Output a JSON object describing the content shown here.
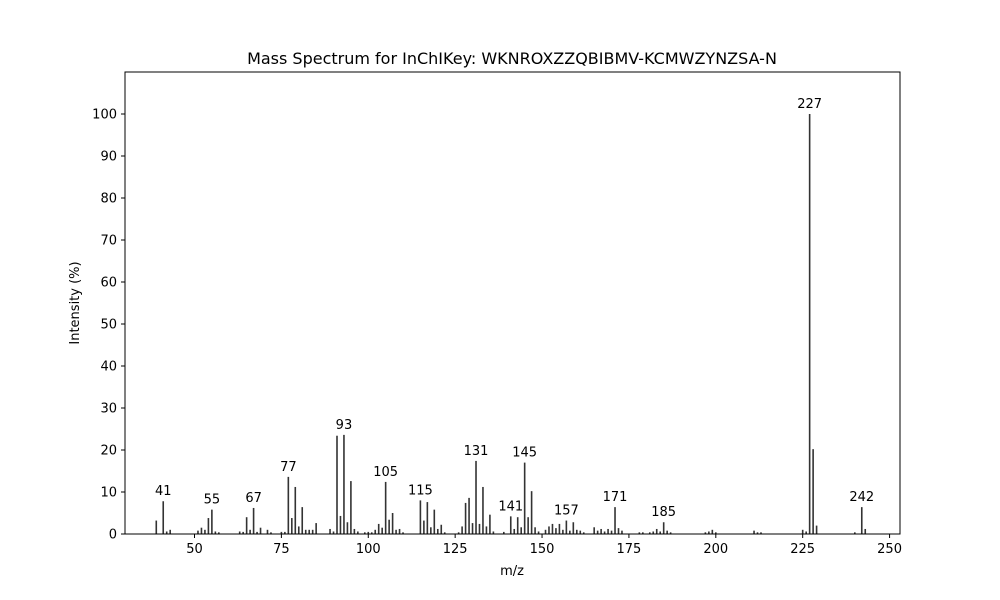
{
  "chart_data": {
    "type": "bar",
    "title": "Mass Spectrum for InChIKey: WKNROXZZQBIBMV-KCMWZYNZSA-N",
    "xlabel": "m/z",
    "ylabel": "Intensity (%)",
    "xlim": [
      30,
      253
    ],
    "ylim": [
      0,
      110
    ],
    "xticks": [
      50,
      75,
      100,
      125,
      150,
      175,
      200,
      225,
      250
    ],
    "yticks": [
      0,
      10,
      20,
      30,
      40,
      50,
      60,
      70,
      80,
      90,
      100
    ],
    "grid": false,
    "bar_color": "#333333",
    "peaks": [
      {
        "mz": 39,
        "intensity": 3.2
      },
      {
        "mz": 41,
        "intensity": 7.8,
        "label": "41"
      },
      {
        "mz": 42,
        "intensity": 0.6
      },
      {
        "mz": 43,
        "intensity": 1.0
      },
      {
        "mz": 51,
        "intensity": 0.8
      },
      {
        "mz": 52,
        "intensity": 1.5
      },
      {
        "mz": 53,
        "intensity": 1.0
      },
      {
        "mz": 54,
        "intensity": 3.8
      },
      {
        "mz": 55,
        "intensity": 5.8,
        "label": "55"
      },
      {
        "mz": 56,
        "intensity": 0.6
      },
      {
        "mz": 57,
        "intensity": 0.4
      },
      {
        "mz": 63,
        "intensity": 0.6
      },
      {
        "mz": 64,
        "intensity": 0.5
      },
      {
        "mz": 65,
        "intensity": 4.0
      },
      {
        "mz": 66,
        "intensity": 1.0
      },
      {
        "mz": 67,
        "intensity": 6.2,
        "label": "67"
      },
      {
        "mz": 68,
        "intensity": 0.5
      },
      {
        "mz": 69,
        "intensity": 1.5
      },
      {
        "mz": 71,
        "intensity": 1.0
      },
      {
        "mz": 72,
        "intensity": 0.4
      },
      {
        "mz": 75,
        "intensity": 0.5
      },
      {
        "mz": 76,
        "intensity": 0.5
      },
      {
        "mz": 77,
        "intensity": 13.6,
        "label": "77"
      },
      {
        "mz": 78,
        "intensity": 3.8
      },
      {
        "mz": 79,
        "intensity": 11.2
      },
      {
        "mz": 80,
        "intensity": 1.8
      },
      {
        "mz": 81,
        "intensity": 6.4
      },
      {
        "mz": 82,
        "intensity": 1.0
      },
      {
        "mz": 83,
        "intensity": 1.0
      },
      {
        "mz": 84,
        "intensity": 1.0
      },
      {
        "mz": 85,
        "intensity": 2.6
      },
      {
        "mz": 89,
        "intensity": 1.2
      },
      {
        "mz": 90,
        "intensity": 0.6
      },
      {
        "mz": 91,
        "intensity": 23.4
      },
      {
        "mz": 92,
        "intensity": 4.3
      },
      {
        "mz": 93,
        "intensity": 23.6,
        "label": "93"
      },
      {
        "mz": 94,
        "intensity": 2.8
      },
      {
        "mz": 95,
        "intensity": 12.6
      },
      {
        "mz": 96,
        "intensity": 1.2
      },
      {
        "mz": 97,
        "intensity": 0.6
      },
      {
        "mz": 99,
        "intensity": 0.4
      },
      {
        "mz": 100,
        "intensity": 0.5
      },
      {
        "mz": 101,
        "intensity": 0.4
      },
      {
        "mz": 102,
        "intensity": 1.0
      },
      {
        "mz": 103,
        "intensity": 2.4
      },
      {
        "mz": 104,
        "intensity": 1.5
      },
      {
        "mz": 105,
        "intensity": 12.4,
        "label": "105"
      },
      {
        "mz": 106,
        "intensity": 3.4
      },
      {
        "mz": 107,
        "intensity": 5.0
      },
      {
        "mz": 108,
        "intensity": 1.0
      },
      {
        "mz": 109,
        "intensity": 1.2
      },
      {
        "mz": 110,
        "intensity": 0.4
      },
      {
        "mz": 115,
        "intensity": 8.0,
        "label": "115"
      },
      {
        "mz": 116,
        "intensity": 3.2
      },
      {
        "mz": 117,
        "intensity": 7.6
      },
      {
        "mz": 118,
        "intensity": 1.6
      },
      {
        "mz": 119,
        "intensity": 5.8
      },
      {
        "mz": 120,
        "intensity": 1.2
      },
      {
        "mz": 121,
        "intensity": 2.2
      },
      {
        "mz": 122,
        "intensity": 0.4
      },
      {
        "mz": 126,
        "intensity": 0.4
      },
      {
        "mz": 127,
        "intensity": 1.8
      },
      {
        "mz": 128,
        "intensity": 7.4
      },
      {
        "mz": 129,
        "intensity": 8.6
      },
      {
        "mz": 130,
        "intensity": 2.6
      },
      {
        "mz": 131,
        "intensity": 17.4,
        "label": "131"
      },
      {
        "mz": 132,
        "intensity": 2.4
      },
      {
        "mz": 133,
        "intensity": 11.2
      },
      {
        "mz": 134,
        "intensity": 1.8
      },
      {
        "mz": 135,
        "intensity": 4.6
      },
      {
        "mz": 136,
        "intensity": 0.6
      },
      {
        "mz": 139,
        "intensity": 0.5
      },
      {
        "mz": 141,
        "intensity": 4.2,
        "label": "141"
      },
      {
        "mz": 142,
        "intensity": 1.2
      },
      {
        "mz": 143,
        "intensity": 4.0
      },
      {
        "mz": 144,
        "intensity": 1.6
      },
      {
        "mz": 145,
        "intensity": 17.0,
        "label": "145"
      },
      {
        "mz": 146,
        "intensity": 4.0
      },
      {
        "mz": 147,
        "intensity": 10.2
      },
      {
        "mz": 148,
        "intensity": 1.6
      },
      {
        "mz": 149,
        "intensity": 0.6
      },
      {
        "mz": 151,
        "intensity": 1.0
      },
      {
        "mz": 152,
        "intensity": 1.8
      },
      {
        "mz": 153,
        "intensity": 2.4
      },
      {
        "mz": 154,
        "intensity": 1.4
      },
      {
        "mz": 155,
        "intensity": 2.4
      },
      {
        "mz": 156,
        "intensity": 1.0
      },
      {
        "mz": 157,
        "intensity": 3.2,
        "label": "157"
      },
      {
        "mz": 158,
        "intensity": 0.8
      },
      {
        "mz": 159,
        "intensity": 2.8
      },
      {
        "mz": 160,
        "intensity": 1.0
      },
      {
        "mz": 161,
        "intensity": 0.8
      },
      {
        "mz": 162,
        "intensity": 0.4
      },
      {
        "mz": 165,
        "intensity": 1.6
      },
      {
        "mz": 166,
        "intensity": 0.8
      },
      {
        "mz": 167,
        "intensity": 1.2
      },
      {
        "mz": 168,
        "intensity": 0.6
      },
      {
        "mz": 169,
        "intensity": 1.2
      },
      {
        "mz": 170,
        "intensity": 0.8
      },
      {
        "mz": 171,
        "intensity": 6.4,
        "label": "171"
      },
      {
        "mz": 172,
        "intensity": 1.4
      },
      {
        "mz": 173,
        "intensity": 0.8
      },
      {
        "mz": 178,
        "intensity": 0.4
      },
      {
        "mz": 179,
        "intensity": 0.4
      },
      {
        "mz": 181,
        "intensity": 0.4
      },
      {
        "mz": 182,
        "intensity": 0.6
      },
      {
        "mz": 183,
        "intensity": 1.2
      },
      {
        "mz": 184,
        "intensity": 0.6
      },
      {
        "mz": 185,
        "intensity": 2.8,
        "label": "185"
      },
      {
        "mz": 186,
        "intensity": 0.8
      },
      {
        "mz": 187,
        "intensity": 0.4
      },
      {
        "mz": 197,
        "intensity": 0.4
      },
      {
        "mz": 198,
        "intensity": 0.6
      },
      {
        "mz": 199,
        "intensity": 1.0
      },
      {
        "mz": 200,
        "intensity": 0.4
      },
      {
        "mz": 211,
        "intensity": 0.8
      },
      {
        "mz": 212,
        "intensity": 0.4
      },
      {
        "mz": 213,
        "intensity": 0.4
      },
      {
        "mz": 225,
        "intensity": 1.0
      },
      {
        "mz": 226,
        "intensity": 0.6
      },
      {
        "mz": 227,
        "intensity": 100.0,
        "label": "227"
      },
      {
        "mz": 228,
        "intensity": 20.2
      },
      {
        "mz": 229,
        "intensity": 2.0
      },
      {
        "mz": 240,
        "intensity": 0.4
      },
      {
        "mz": 242,
        "intensity": 6.4,
        "label": "242"
      },
      {
        "mz": 243,
        "intensity": 1.2
      }
    ]
  }
}
